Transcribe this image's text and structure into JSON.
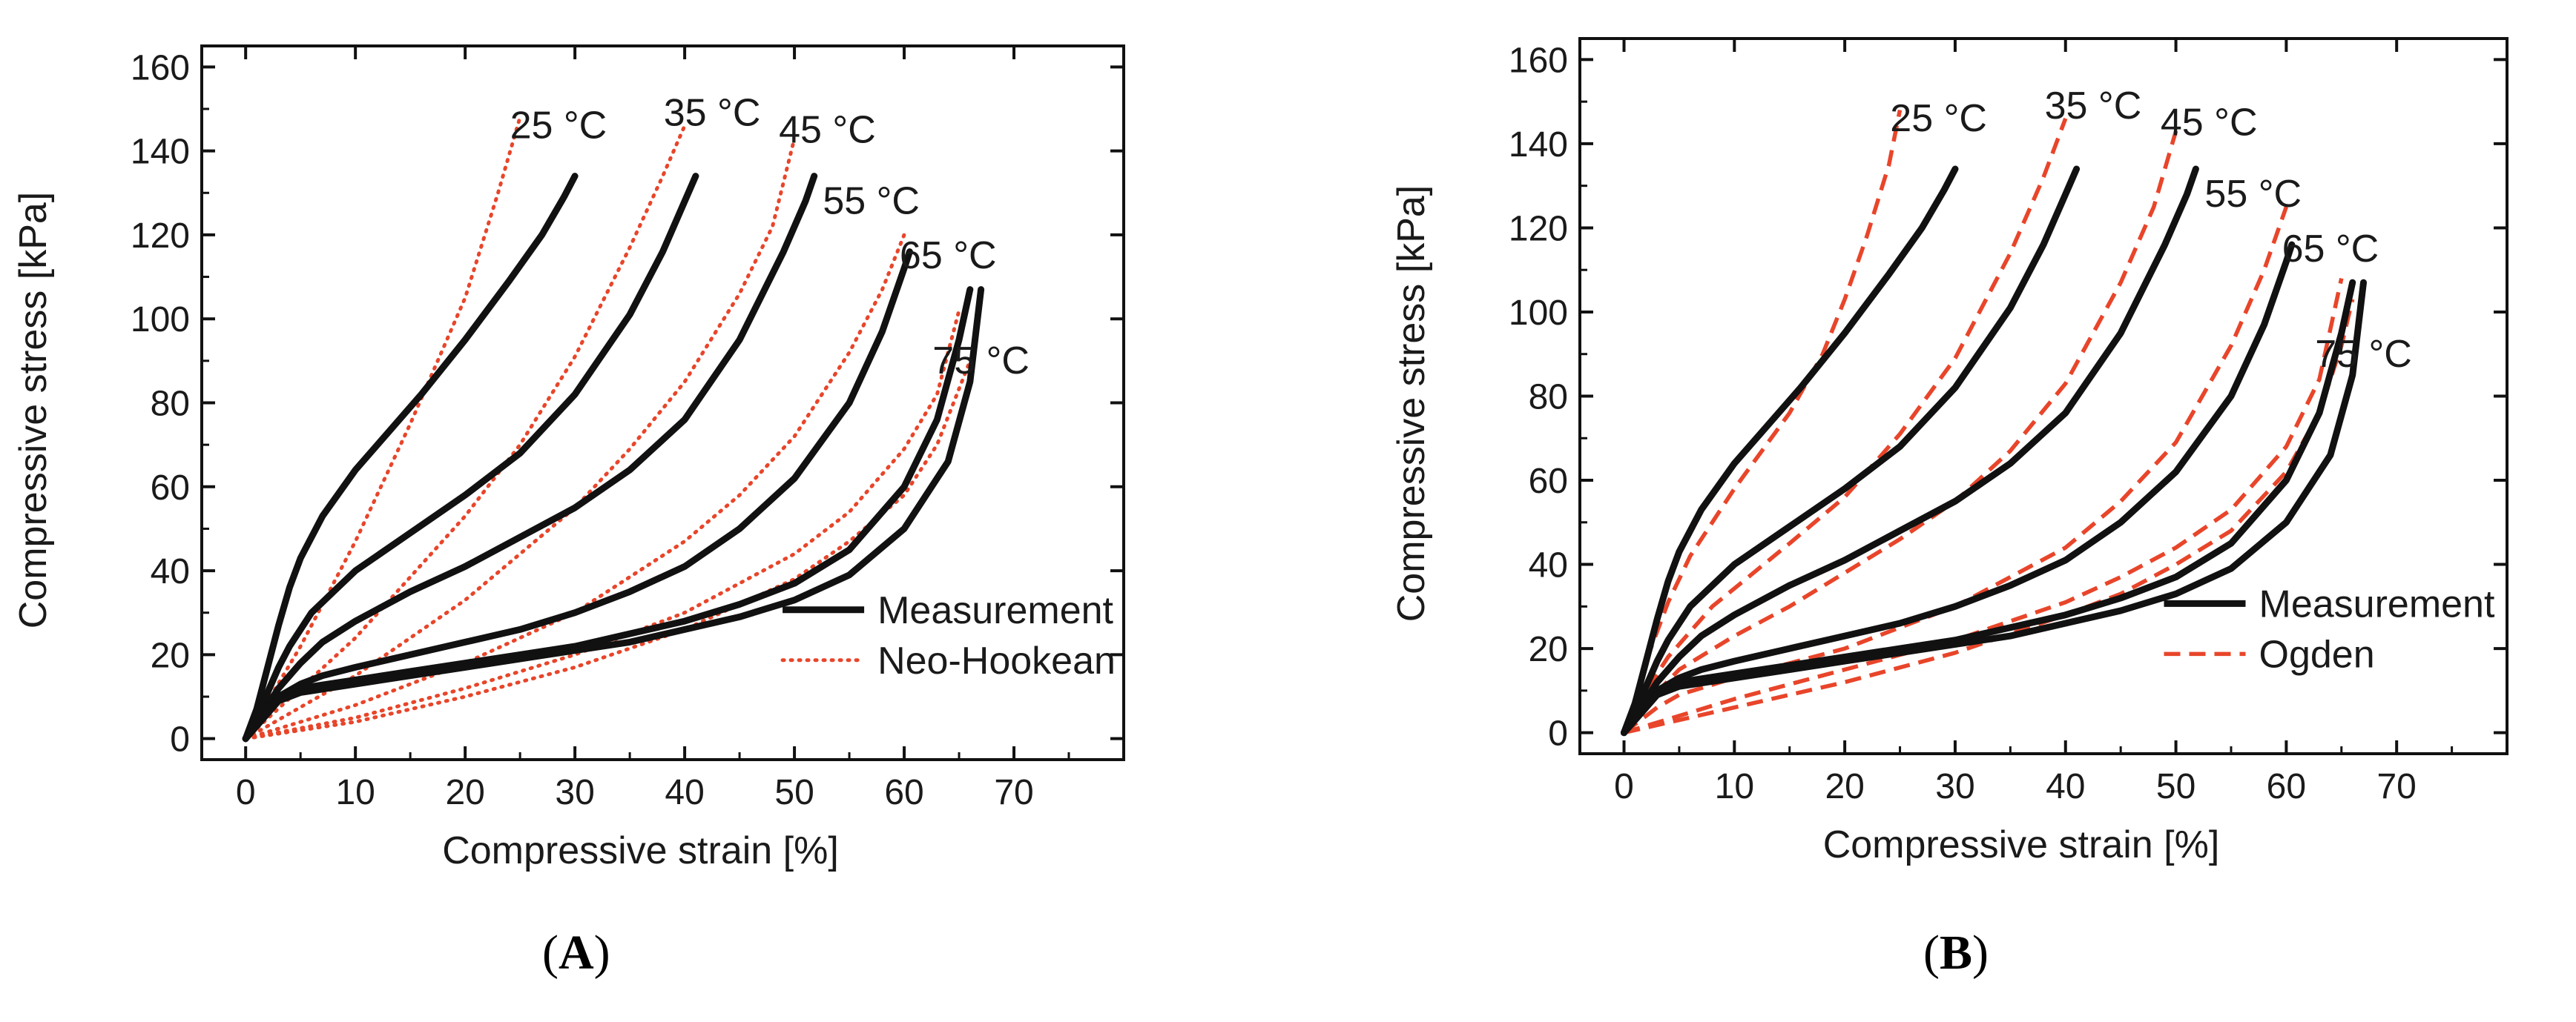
{
  "chart_data": [
    {
      "panel": "A",
      "type": "line",
      "xlabel": "Compressive strain [%]",
      "ylabel": "Compressive stress [kPa]",
      "xlim": [
        -4,
        80
      ],
      "ylim": [
        -5,
        165
      ],
      "xticks": [
        0,
        10,
        20,
        30,
        40,
        50,
        60,
        70
      ],
      "yticks": [
        0,
        20,
        40,
        60,
        80,
        100,
        120,
        140,
        160
      ],
      "grid": false,
      "legend_position": "bottom-right",
      "legend": [
        {
          "name": "Measurement",
          "style": "solid",
          "color": "#111111"
        },
        {
          "name": "Neo-Hookean",
          "style": "dotted",
          "color": "#e8452a"
        }
      ],
      "curve_labels": [
        {
          "text": "25 °C",
          "x": 28.5,
          "y": 143
        },
        {
          "text": "35 °C",
          "x": 42.5,
          "y": 146
        },
        {
          "text": "45 °C",
          "x": 53,
          "y": 142
        },
        {
          "text": "55 °C",
          "x": 57,
          "y": 125
        },
        {
          "text": "65 °C",
          "x": 64,
          "y": 112
        },
        {
          "text": "75 °C",
          "x": 67,
          "y": 87
        }
      ],
      "series": [
        {
          "name": "Measurement 25 °C",
          "style": "solid",
          "x": [
            0,
            1,
            2,
            3,
            4,
            5,
            7,
            10,
            13,
            16,
            20,
            24,
            27,
            29,
            30
          ],
          "y": [
            0,
            7,
            17,
            27,
            36,
            43,
            53,
            64,
            73,
            82,
            95,
            109,
            120,
            129,
            134
          ]
        },
        {
          "name": "Measurement 35 °C",
          "style": "solid",
          "x": [
            0,
            1,
            2,
            3,
            4,
            6,
            8,
            10,
            15,
            20,
            25,
            30,
            35,
            38,
            40,
            41
          ],
          "y": [
            0,
            5,
            11,
            17,
            22,
            30,
            35,
            40,
            49,
            58,
            68,
            82,
            101,
            116,
            128,
            134
          ]
        },
        {
          "name": "Measurement 45 °C",
          "style": "solid",
          "x": [
            0,
            1,
            2,
            3,
            5,
            7,
            10,
            15,
            20,
            25,
            30,
            35,
            40,
            45,
            49,
            51,
            51.8
          ],
          "y": [
            0,
            4,
            8,
            12,
            18,
            23,
            28,
            35,
            41,
            48,
            55,
            64,
            76,
            95,
            116,
            128,
            134
          ]
        },
        {
          "name": "Measurement 55 °C",
          "style": "solid",
          "x": [
            0,
            1,
            2,
            3,
            5,
            7,
            10,
            15,
            20,
            25,
            30,
            35,
            40,
            45,
            50,
            55,
            58,
            60,
            60.5
          ],
          "y": [
            0,
            4,
            7,
            10,
            13,
            15,
            17,
            20,
            23,
            26,
            30,
            35,
            41,
            50,
            62,
            80,
            97,
            112,
            116
          ]
        },
        {
          "name": "Measurement 65 °C",
          "style": "solid",
          "x": [
            0,
            1,
            2,
            3,
            5,
            10,
            15,
            20,
            25,
            30,
            35,
            40,
            45,
            50,
            55,
            60,
            63,
            65,
            66
          ],
          "y": [
            0,
            4,
            7,
            10,
            12,
            14,
            16,
            18,
            20,
            22,
            25,
            28,
            32,
            37,
            45,
            60,
            76,
            95,
            107
          ]
        },
        {
          "name": "Measurement 75 °C",
          "style": "solid",
          "x": [
            0,
            1,
            2,
            3,
            5,
            10,
            15,
            20,
            25,
            30,
            35,
            40,
            45,
            50,
            55,
            60,
            64,
            66,
            67
          ],
          "y": [
            0,
            3,
            6,
            9,
            11,
            13,
            15,
            17,
            19,
            21,
            23,
            26,
            29,
            33,
            39,
            50,
            66,
            85,
            107
          ]
        },
        {
          "name": "Neo-Hookean 25 °C",
          "style": "dotted",
          "x": [
            0,
            5,
            10,
            15,
            20,
            23,
            25
          ],
          "y": [
            0,
            22,
            47,
            75,
            105,
            130,
            148
          ]
        },
        {
          "name": "Neo-Hookean 35 °C",
          "style": "dotted",
          "x": [
            0,
            10,
            20,
            25,
            30,
            35,
            38,
            40
          ],
          "y": [
            0,
            24,
            53,
            70,
            91,
            117,
            134,
            146
          ]
        },
        {
          "name": "Neo-Hookean 45 °C",
          "style": "dotted",
          "x": [
            0,
            10,
            20,
            30,
            35,
            40,
            45,
            48,
            50
          ],
          "y": [
            0,
            15,
            33,
            55,
            69,
            85,
            106,
            122,
            143
          ]
        },
        {
          "name": "Neo-Hookean 55 °C",
          "style": "dotted",
          "x": [
            0,
            10,
            20,
            30,
            40,
            45,
            50,
            55,
            58,
            60
          ],
          "y": [
            0,
            8,
            18,
            30,
            47,
            58,
            72,
            92,
            107,
            120
          ]
        },
        {
          "name": "Neo-Hookean 65 °C",
          "style": "dotted",
          "x": [
            0,
            10,
            20,
            30,
            40,
            50,
            55,
            60,
            63,
            65
          ],
          "y": [
            0,
            5,
            12,
            20,
            30,
            44,
            54,
            69,
            82,
            102
          ]
        },
        {
          "name": "Neo-Hookean 75 °C",
          "style": "dotted",
          "x": [
            0,
            10,
            20,
            30,
            40,
            50,
            55,
            60,
            63,
            66
          ],
          "y": [
            0,
            4,
            10,
            17,
            26,
            38,
            47,
            58,
            70,
            90
          ]
        }
      ]
    },
    {
      "panel": "B",
      "type": "line",
      "xlabel": "Compressive strain [%]",
      "ylabel": "Compressive stress [kPa]",
      "xlim": [
        -4,
        80
      ],
      "ylim": [
        -5,
        165
      ],
      "xticks": [
        0,
        10,
        20,
        30,
        40,
        50,
        60,
        70
      ],
      "yticks": [
        0,
        20,
        40,
        60,
        80,
        100,
        120,
        140,
        160
      ],
      "grid": false,
      "legend_position": "bottom-right",
      "legend": [
        {
          "name": "Measurement",
          "style": "solid",
          "color": "#111111"
        },
        {
          "name": "Ogden",
          "style": "dashed",
          "color": "#e8452a"
        }
      ],
      "curve_labels": [
        {
          "text": "25 °C",
          "x": 28.5,
          "y": 143
        },
        {
          "text": "35 °C",
          "x": 42.5,
          "y": 146
        },
        {
          "text": "45 °C",
          "x": 53,
          "y": 142
        },
        {
          "text": "55 °C",
          "x": 57,
          "y": 125
        },
        {
          "text": "65 °C",
          "x": 64,
          "y": 112
        },
        {
          "text": "75 °C",
          "x": 67,
          "y": 87
        }
      ],
      "series": [
        {
          "name": "Measurement 25 °C",
          "style": "solid",
          "x": [
            0,
            1,
            2,
            3,
            4,
            5,
            7,
            10,
            13,
            16,
            20,
            24,
            27,
            29,
            30
          ],
          "y": [
            0,
            7,
            17,
            27,
            36,
            43,
            53,
            64,
            73,
            82,
            95,
            109,
            120,
            129,
            134
          ]
        },
        {
          "name": "Measurement 35 °C",
          "style": "solid",
          "x": [
            0,
            1,
            2,
            3,
            4,
            6,
            8,
            10,
            15,
            20,
            25,
            30,
            35,
            38,
            40,
            41
          ],
          "y": [
            0,
            5,
            11,
            17,
            22,
            30,
            35,
            40,
            49,
            58,
            68,
            82,
            101,
            116,
            128,
            134
          ]
        },
        {
          "name": "Measurement 45 °C",
          "style": "solid",
          "x": [
            0,
            1,
            2,
            3,
            5,
            7,
            10,
            15,
            20,
            25,
            30,
            35,
            40,
            45,
            49,
            51,
            51.8
          ],
          "y": [
            0,
            4,
            8,
            12,
            18,
            23,
            28,
            35,
            41,
            48,
            55,
            64,
            76,
            95,
            116,
            128,
            134
          ]
        },
        {
          "name": "Measurement 55 °C",
          "style": "solid",
          "x": [
            0,
            1,
            2,
            3,
            5,
            7,
            10,
            15,
            20,
            25,
            30,
            35,
            40,
            45,
            50,
            55,
            58,
            60,
            60.5
          ],
          "y": [
            0,
            4,
            7,
            10,
            13,
            15,
            17,
            20,
            23,
            26,
            30,
            35,
            41,
            50,
            62,
            80,
            97,
            112,
            116
          ]
        },
        {
          "name": "Measurement 65 °C",
          "style": "solid",
          "x": [
            0,
            1,
            2,
            3,
            5,
            10,
            15,
            20,
            25,
            30,
            35,
            40,
            45,
            50,
            55,
            60,
            63,
            65,
            66
          ],
          "y": [
            0,
            4,
            7,
            10,
            12,
            14,
            16,
            18,
            20,
            22,
            25,
            28,
            32,
            37,
            45,
            60,
            76,
            95,
            107
          ]
        },
        {
          "name": "Measurement 75 °C",
          "style": "solid",
          "x": [
            0,
            1,
            2,
            3,
            5,
            10,
            15,
            20,
            25,
            30,
            35,
            40,
            45,
            50,
            55,
            60,
            64,
            66,
            67
          ],
          "y": [
            0,
            3,
            6,
            9,
            11,
            13,
            15,
            17,
            19,
            21,
            23,
            26,
            29,
            33,
            39,
            50,
            66,
            85,
            107
          ]
        },
        {
          "name": "Ogden 25 °C",
          "style": "dashed",
          "x": [
            0,
            1,
            2,
            4,
            6,
            10,
            15,
            18,
            20,
            22,
            24,
            25
          ],
          "y": [
            0,
            8,
            17,
            31,
            42,
            58,
            76,
            90,
            103,
            118,
            135,
            148
          ]
        },
        {
          "name": "Ogden 35 °C",
          "style": "dashed",
          "x": [
            0,
            2,
            4,
            8,
            15,
            20,
            25,
            30,
            35,
            38,
            40
          ],
          "y": [
            0,
            10,
            18,
            30,
            45,
            56,
            71,
            89,
            114,
            132,
            146
          ]
        },
        {
          "name": "Ogden 45 °C",
          "style": "dashed",
          "x": [
            0,
            2,
            5,
            10,
            15,
            20,
            25,
            30,
            35,
            40,
            45,
            48,
            50
          ],
          "y": [
            0,
            7,
            15,
            23,
            30,
            38,
            46,
            55,
            67,
            83,
            107,
            125,
            143
          ]
        },
        {
          "name": "Ogden 55 °C",
          "style": "dashed",
          "x": [
            0,
            3,
            5,
            10,
            20,
            30,
            40,
            45,
            50,
            55,
            58,
            60
          ],
          "y": [
            0,
            6,
            9,
            13,
            20,
            30,
            44,
            55,
            69,
            92,
            110,
            125
          ]
        },
        {
          "name": "Ogden 65 °C",
          "style": "dashed",
          "x": [
            0,
            5,
            10,
            20,
            30,
            40,
            45,
            50,
            55,
            60,
            63,
            65
          ],
          "y": [
            0,
            4,
            8,
            15,
            22,
            31,
            37,
            44,
            53,
            68,
            84,
            108
          ]
        },
        {
          "name": "Ogden 75 °C",
          "style": "dashed",
          "x": [
            0,
            5,
            10,
            20,
            30,
            40,
            45,
            50,
            55,
            60,
            63,
            65,
            66
          ],
          "y": [
            0,
            3,
            6,
            12,
            19,
            28,
            33,
            40,
            48,
            62,
            76,
            92,
            103
          ]
        }
      ]
    }
  ],
  "panel_labels": [
    "A",
    "B"
  ],
  "colors": {
    "measurement": "#111111",
    "model": "#e8452a"
  }
}
